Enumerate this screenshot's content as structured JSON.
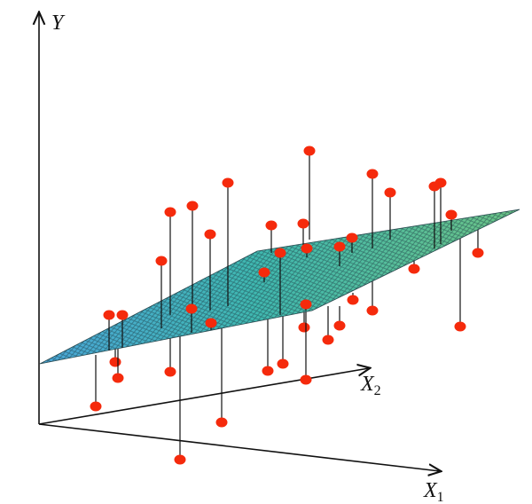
{
  "axes": {
    "y": {
      "label": "Y"
    },
    "x2": {
      "label": "X",
      "sub": "2"
    },
    "x1": {
      "label": "X",
      "sub": "1"
    }
  }
}
